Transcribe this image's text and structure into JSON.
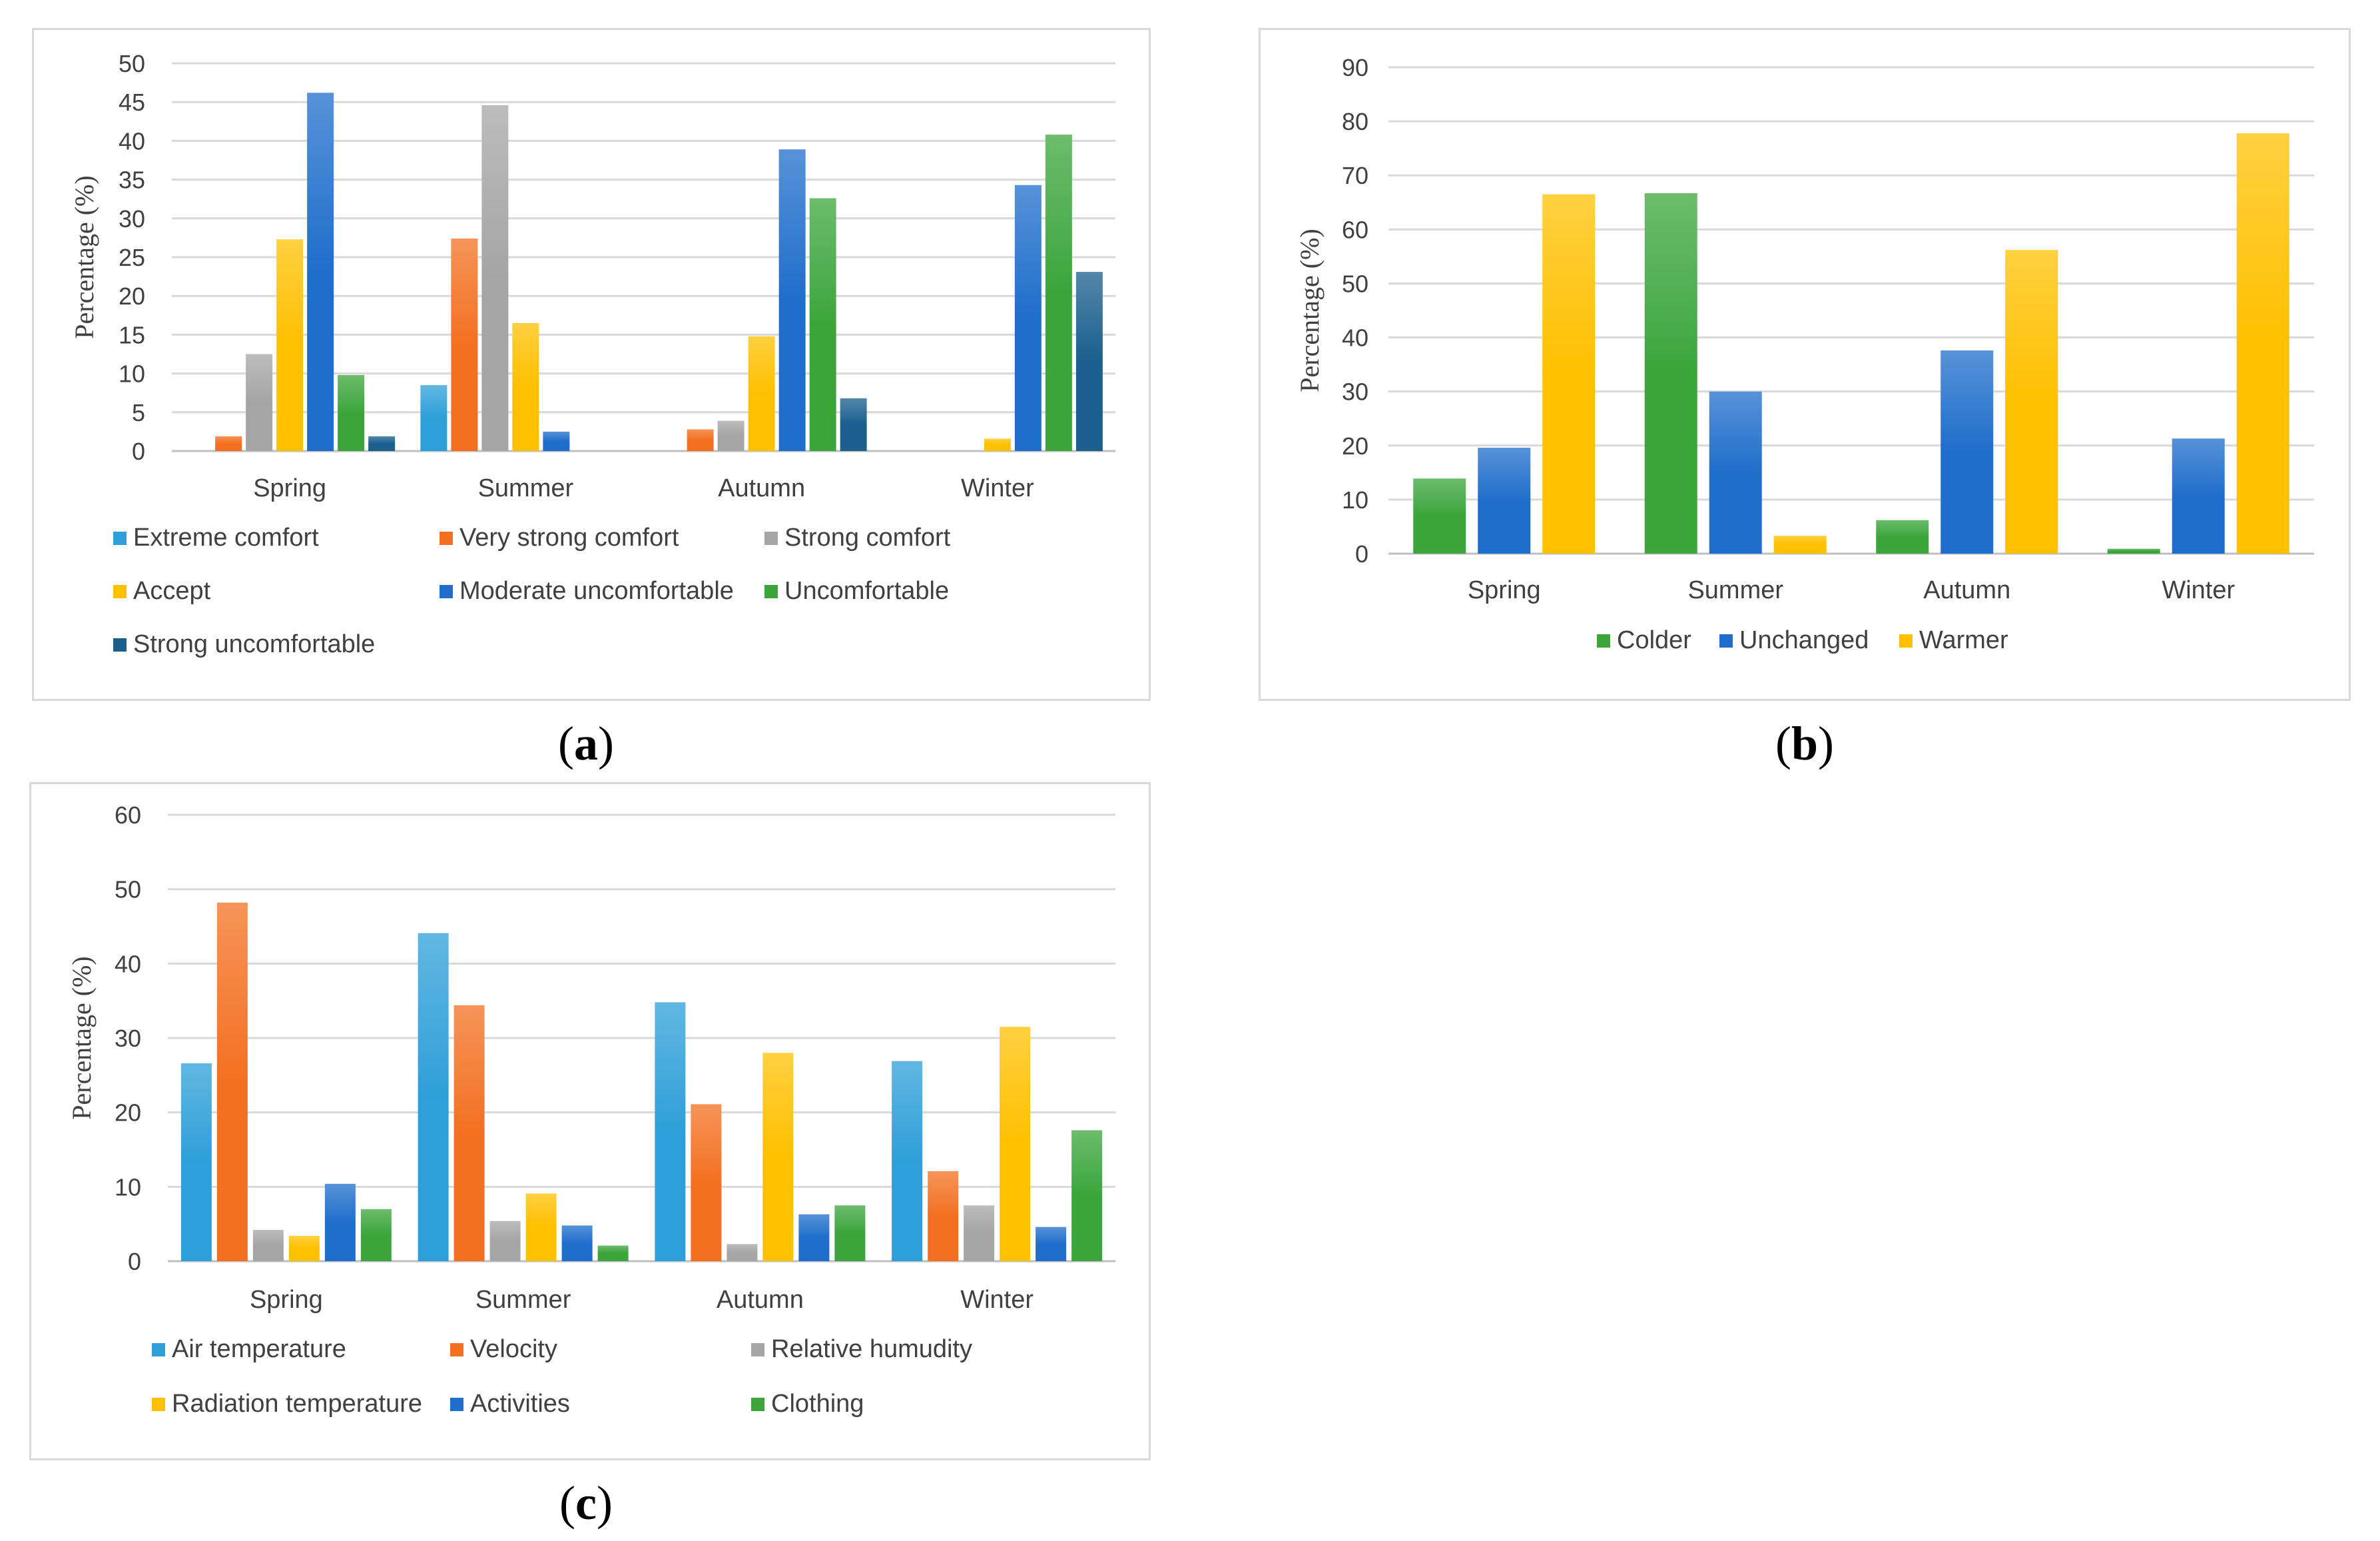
{
  "chart_data": [
    {
      "id": "a",
      "type": "bar",
      "panel_label": "a",
      "title": "",
      "xlabel": "",
      "ylabel": "Percentage (%)",
      "ylim": [
        0,
        50
      ],
      "yticks": [
        "0",
        "5",
        "10",
        "15",
        "20",
        "25",
        "30",
        "35",
        "40",
        "45",
        "50"
      ],
      "grid": true,
      "categories": [
        "Spring",
        "Summer",
        "Autumn",
        "Winter"
      ],
      "series": [
        {
          "name": "Extreme comfort",
          "color": "#2e9fd8",
          "values": [
            0,
            8.5,
            0,
            0
          ]
        },
        {
          "name": "Very strong comfort",
          "color": "#f37021",
          "values": [
            1.9,
            27.4,
            2.8,
            0
          ]
        },
        {
          "name": "Strong comfort",
          "color": "#a5a5a5",
          "values": [
            12.5,
            44.6,
            3.9,
            0
          ]
        },
        {
          "name": "Accept",
          "color": "#ffc000",
          "values": [
            27.3,
            16.5,
            14.8,
            1.6
          ]
        },
        {
          "name": "Moderate uncomfortable",
          "color": "#1f6ecb",
          "values": [
            46.2,
            2.5,
            38.9,
            34.3
          ]
        },
        {
          "name": "Uncomfortable",
          "color": "#3ba53b",
          "values": [
            9.8,
            0,
            32.6,
            40.8
          ]
        },
        {
          "name": "Strong uncomfortable",
          "color": "#1a5f8e",
          "values": [
            1.9,
            0,
            6.8,
            23.1
          ]
        }
      ]
    },
    {
      "id": "b",
      "type": "bar",
      "panel_label": "b",
      "title": "",
      "xlabel": "",
      "ylabel": "Percentage (%)",
      "ylim": [
        0,
        90
      ],
      "yticks": [
        "0",
        "10",
        "20",
        "30",
        "40",
        "50",
        "60",
        "70",
        "80",
        "90"
      ],
      "grid": true,
      "categories": [
        "Spring",
        "Summer",
        "Autumn",
        "Winter"
      ],
      "series": [
        {
          "name": "Colder",
          "color": "#3ba53b",
          "values": [
            13.9,
            66.7,
            6.2,
            0.9
          ]
        },
        {
          "name": "Unchanged",
          "color": "#1f6ecb",
          "values": [
            19.6,
            30.0,
            37.6,
            21.3
          ]
        },
        {
          "name": "Warmer",
          "color": "#ffc000",
          "values": [
            66.5,
            3.3,
            56.2,
            77.8
          ]
        }
      ]
    },
    {
      "id": "c",
      "type": "bar",
      "panel_label": "c",
      "title": "",
      "xlabel": "",
      "ylabel": "Percentage (%)",
      "ylim": [
        0,
        60
      ],
      "yticks": [
        "0",
        "10",
        "20",
        "30",
        "40",
        "50",
        "60"
      ],
      "grid": true,
      "categories": [
        "Spring",
        "Summer",
        "Autumn",
        "Winter"
      ],
      "series": [
        {
          "name": "Air temperature",
          "color": "#2e9fd8",
          "values": [
            26.6,
            44.1,
            34.8,
            26.9
          ]
        },
        {
          "name": "Velocity",
          "color": "#f37021",
          "values": [
            48.2,
            34.4,
            21.1,
            12.1
          ]
        },
        {
          "name": "Relative humudity",
          "color": "#a5a5a5",
          "values": [
            4.2,
            5.4,
            2.3,
            7.5
          ]
        },
        {
          "name": "Radiation temperature",
          "color": "#ffc000",
          "values": [
            3.4,
            9.1,
            28.0,
            31.5
          ]
        },
        {
          "name": "Activities",
          "color": "#1f6ecb",
          "values": [
            10.4,
            4.8,
            6.3,
            4.6
          ]
        },
        {
          "name": "Clothing",
          "color": "#3ba53b",
          "values": [
            7.0,
            2.1,
            7.5,
            17.6
          ]
        }
      ]
    }
  ]
}
